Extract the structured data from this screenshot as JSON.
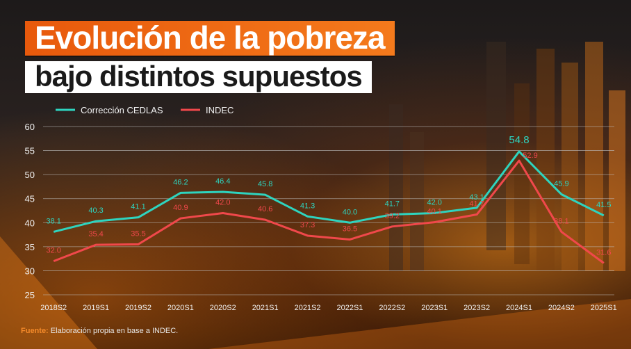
{
  "title": {
    "line1": "Evolución de la pobreza",
    "line2": "bajo distintos supuestos"
  },
  "source": {
    "label": "Fuente:",
    "text": "Elaboración propia en base a INDEC."
  },
  "colors": {
    "cedlas": "#2ed4bf",
    "indec": "#f0484b",
    "grid": "#bfbfbf",
    "axis_text": "#f2f2f2",
    "title_bg": "#ee6414"
  },
  "chart_data": {
    "type": "line",
    "categories": [
      "2018S2",
      "2019S1",
      "2019S2",
      "2020S1",
      "2020S2",
      "2021S1",
      "2021S2",
      "2022S1",
      "2022S2",
      "2023S1",
      "2023S2",
      "2024S1",
      "2024S2",
      "2025S1"
    ],
    "series": [
      {
        "name": "Corrección CEDLAS",
        "values": [
          38.1,
          40.3,
          41.1,
          46.2,
          46.4,
          45.8,
          41.3,
          40.0,
          41.7,
          42.0,
          43.1,
          54.8,
          45.9,
          41.5
        ]
      },
      {
        "name": "INDEC",
        "values": [
          32.0,
          35.4,
          35.5,
          40.9,
          42.0,
          40.6,
          37.3,
          36.5,
          39.2,
          40.1,
          41.7,
          52.9,
          38.1,
          31.6
        ]
      }
    ],
    "ylim": [
      25,
      60
    ],
    "yticks": [
      25,
      30,
      35,
      40,
      45,
      50,
      55,
      60
    ],
    "grid": true,
    "legend_position": "top-left"
  }
}
